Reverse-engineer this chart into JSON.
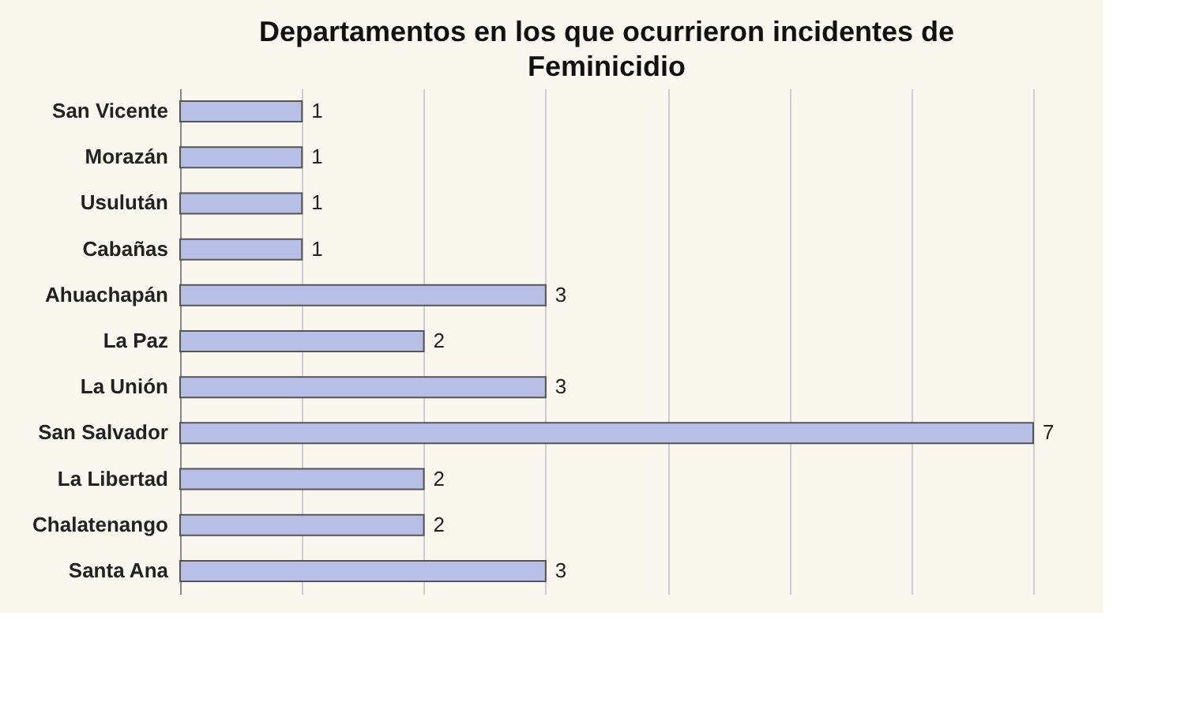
{
  "chart_data": {
    "type": "bar",
    "orientation": "horizontal",
    "title": "Departamentos en los que ocurrieron incidentes de Feminicidio",
    "categories": [
      "San Vicente",
      "Morazán",
      "Usulután",
      "Cabañas",
      "Ahuachapán",
      "La Paz",
      "La Unión",
      "San Salvador",
      "La Libertad",
      "Chalatenango",
      "Santa Ana"
    ],
    "values": [
      1,
      1,
      1,
      1,
      3,
      2,
      3,
      7,
      2,
      2,
      3
    ],
    "color": "#b8bfe6",
    "data_labels": true,
    "grid": "x",
    "tick_labels": "y",
    "xlim": [
      0,
      7
    ],
    "xticks": [
      {
        "value": 0,
        "label": null
      },
      {
        "value": 1,
        "label": null
      },
      {
        "value": 2,
        "label": null
      },
      {
        "value": 3,
        "label": null
      },
      {
        "value": 4,
        "label": null
      },
      {
        "value": 5,
        "label": null
      },
      {
        "value": 6,
        "label": null
      },
      {
        "value": 7,
        "label": null
      }
    ]
  }
}
